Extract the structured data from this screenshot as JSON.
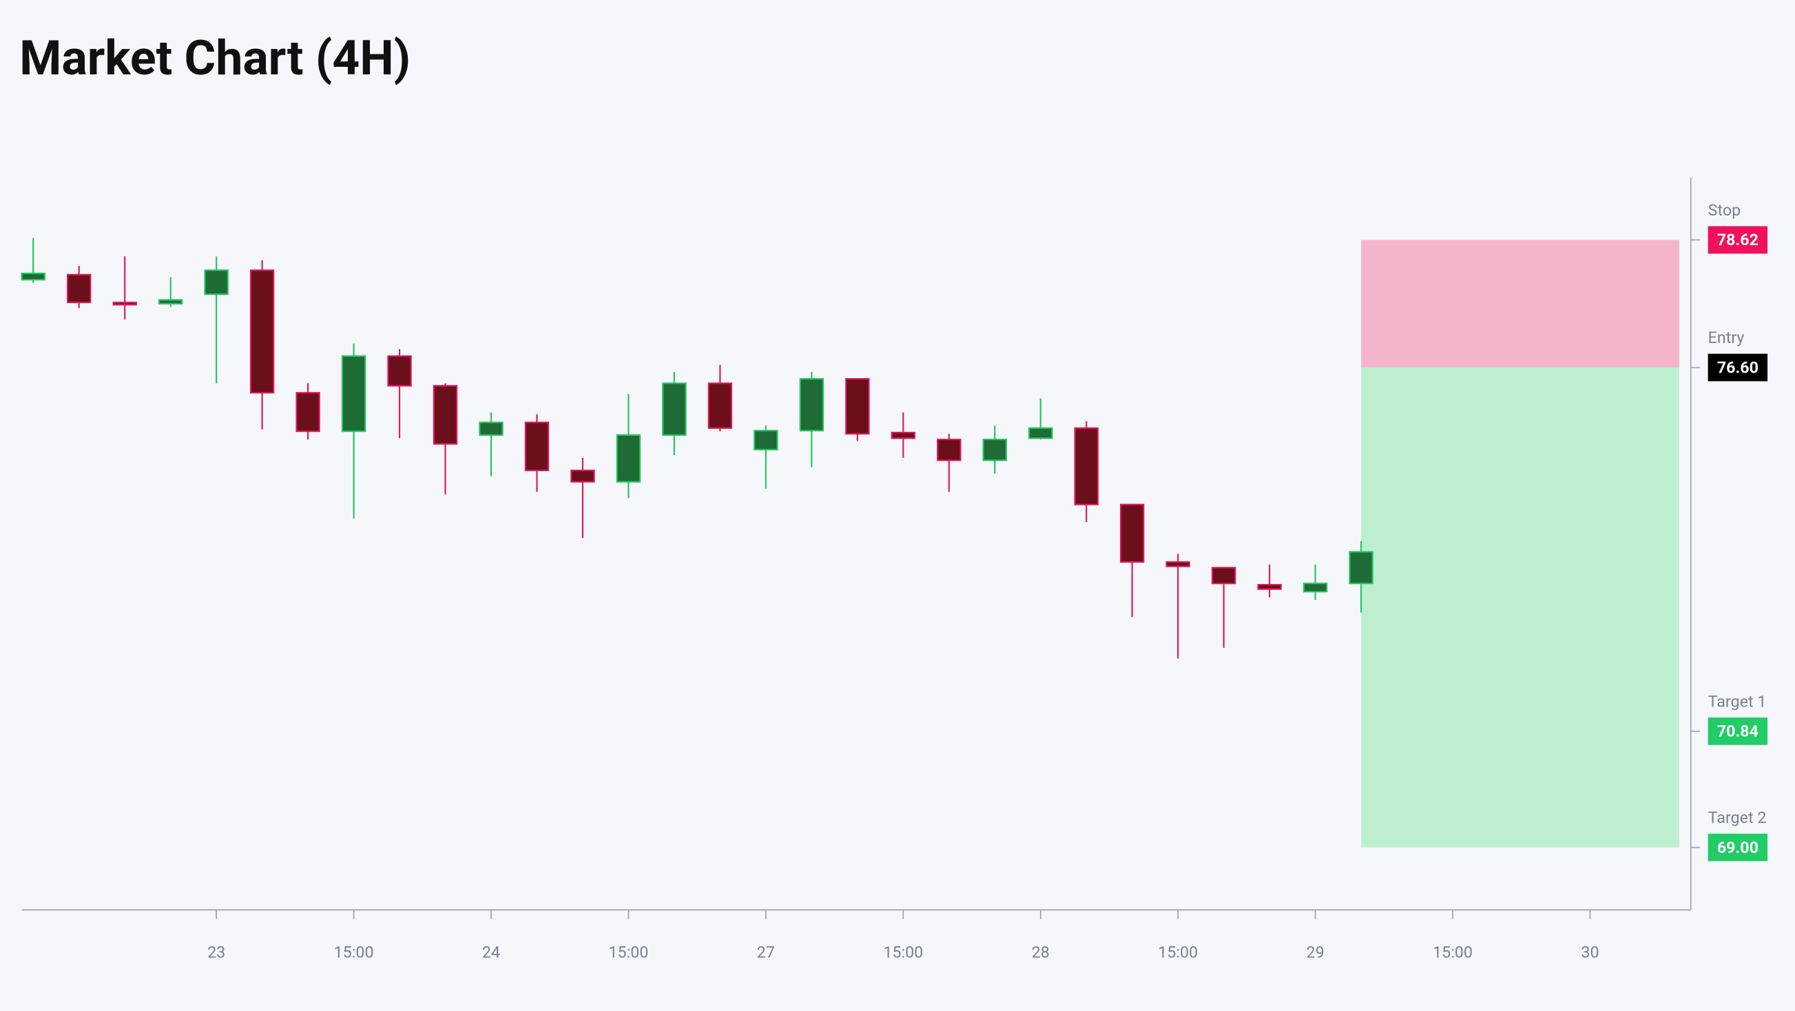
{
  "chart_data": {
    "type": "candlestick",
    "title": "Market Chart (4H)",
    "x": [
      0,
      1,
      2,
      3,
      4,
      5,
      6,
      7,
      8,
      9,
      10,
      11,
      12,
      13,
      14,
      15,
      16,
      17,
      18,
      19,
      20,
      21,
      22,
      23,
      24,
      25,
      26,
      27,
      28,
      29
    ],
    "open": [
      77.99,
      78.07,
      77.63,
      77.61,
      77.76,
      78.14,
      76.2,
      75.59,
      76.78,
      76.31,
      75.53,
      75.73,
      74.97,
      74.79,
      75.53,
      76.35,
      75.3,
      75.6,
      76.42,
      75.57,
      75.46,
      75.13,
      75.48,
      75.64,
      74.43,
      73.52,
      73.43,
      73.16,
      73.05,
      73.18
    ],
    "high": [
      78.65,
      78.21,
      78.36,
      78.03,
      78.36,
      78.3,
      76.35,
      76.98,
      76.89,
      76.35,
      75.89,
      75.86,
      75.17,
      76.18,
      76.53,
      76.64,
      75.68,
      76.53,
      76.42,
      75.89,
      75.55,
      75.68,
      76.11,
      75.75,
      74.44,
      73.65,
      73.43,
      73.48,
      73.48,
      73.85
    ],
    "low": [
      77.94,
      77.54,
      77.36,
      77.56,
      76.35,
      75.62,
      75.46,
      74.21,
      75.48,
      74.59,
      74.88,
      74.63,
      73.9,
      74.53,
      75.21,
      75.59,
      74.68,
      75.02,
      75.44,
      75.17,
      74.63,
      74.92,
      75.46,
      74.15,
      72.65,
      71.99,
      72.16,
      72.96,
      72.92,
      72.72
    ],
    "close": [
      78.09,
      77.63,
      77.61,
      77.67,
      78.14,
      76.2,
      75.59,
      76.78,
      76.31,
      75.39,
      75.73,
      74.97,
      74.79,
      75.53,
      76.35,
      75.64,
      75.6,
      76.42,
      75.55,
      75.48,
      75.13,
      75.46,
      75.64,
      74.43,
      73.52,
      73.45,
      73.18,
      73.09,
      73.18,
      73.68
    ],
    "up_color": "#1f6b35",
    "up_border": "#22c55e",
    "down_color": "#6b0f1a",
    "down_border": "#e0195a",
    "xlim": [
      -0.25,
      36.2
    ],
    "xticks": [
      {
        "value": 4,
        "label": "23"
      },
      {
        "value": 7,
        "label": "15:00"
      },
      {
        "value": 10,
        "label": "24"
      },
      {
        "value": 13,
        "label": "15:00"
      },
      {
        "value": 16,
        "label": "27"
      },
      {
        "value": 19,
        "label": "15:00"
      },
      {
        "value": 22,
        "label": "28"
      },
      {
        "value": 25,
        "label": "15:00"
      },
      {
        "value": 28,
        "label": "29"
      },
      {
        "value": 31,
        "label": "15:00"
      },
      {
        "value": 34,
        "label": "30"
      }
    ],
    "ylim": [
      68.01,
      79.61
    ],
    "levels": [
      {
        "name": "Stop",
        "value": 78.62,
        "color": "#f0115a"
      },
      {
        "name": "Entry",
        "value": 76.6,
        "value_label": "76.60",
        "color": "#000000"
      },
      {
        "name": "Target 1",
        "value": 70.84,
        "color": "#22cc66"
      },
      {
        "name": "Target 2",
        "value": 69,
        "value_label": "69.00",
        "color": "#22cc66"
      }
    ],
    "risk_color": "#f4b5cc",
    "reward_color": "#bdeed0"
  }
}
